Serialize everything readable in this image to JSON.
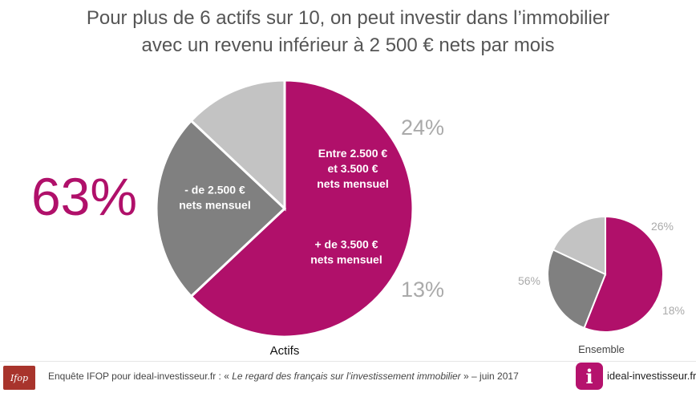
{
  "title": {
    "line1": "Pour plus de 6 actifs sur 10, on peut investir dans l’immobilier",
    "line2": "avec un revenu inférieur à 2 500 € nets par mois"
  },
  "chart_data": [
    {
      "type": "pie",
      "title": "Actifs",
      "headline": "63%",
      "slices": [
        {
          "label": "- de 2.500 € nets mensuel",
          "value": 63,
          "color": "#b0106a",
          "label_lines": [
            "- de 2.500 €",
            "nets mensuel"
          ],
          "value_label": ""
        },
        {
          "label": "Entre 2.500 € et 3.500 € nets mensuel",
          "value": 24,
          "color": "#808080",
          "label_lines": [
            "Entre 2.500 €",
            "et 3.500 €",
            "nets mensuel"
          ],
          "value_label": "24%"
        },
        {
          "label": "+ de 3.500 € nets mensuel",
          "value": 13,
          "color": "#c3c3c3",
          "label_lines": [
            "+ de 3.500 €",
            "nets mensuel"
          ],
          "value_label": "13%"
        }
      ]
    },
    {
      "type": "pie",
      "title": "Ensemble",
      "slices": [
        {
          "label": "- de 2.500 € nets mensuel",
          "value": 56,
          "color": "#b0106a",
          "value_label": "56%"
        },
        {
          "label": "Entre 2.500 € et 3.500 € nets mensuel",
          "value": 26,
          "color": "#808080",
          "value_label": "26%"
        },
        {
          "label": "+ de 3.500 € nets mensuel",
          "value": 18,
          "color": "#c3c3c3",
          "value_label": "18%"
        }
      ]
    }
  ],
  "footer": {
    "logo_text": "Ifop",
    "source_prefix": "Enquête IFOP pour ideal-investisseur.fr : « ",
    "source_title": "Le regard des français sur l’investissement immobilier",
    "source_suffix": " » – juin 2017",
    "brand_icon": "i",
    "brand_name": "ideal-investisseur.fr"
  },
  "colors": {
    "accent": "#b0106a",
    "mid_gray": "#808080",
    "light_gray": "#c3c3c3",
    "value_label_gray": "#aaaaaa"
  }
}
